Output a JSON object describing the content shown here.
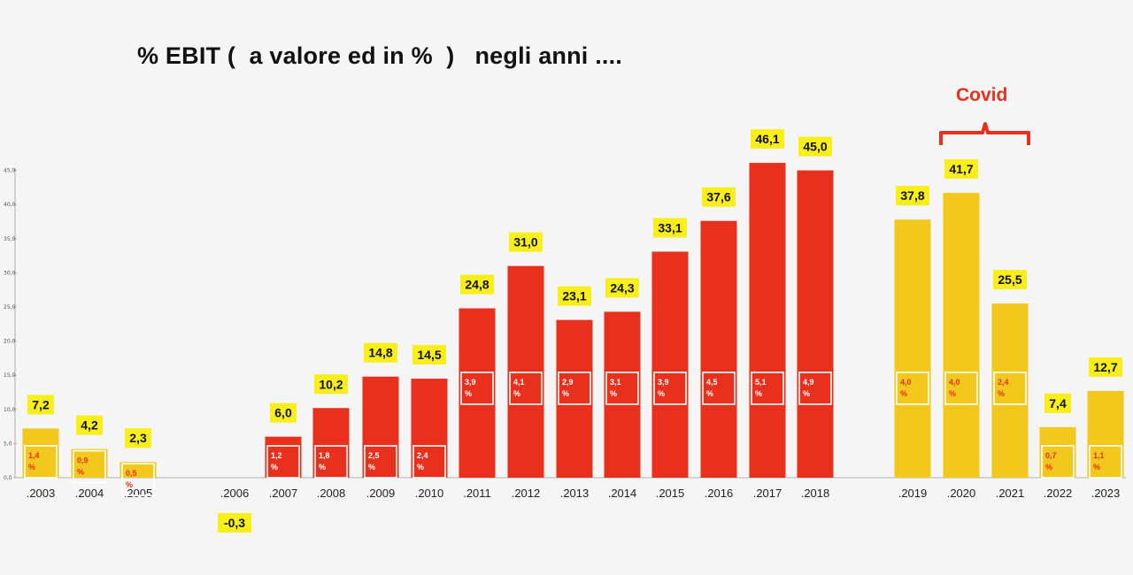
{
  "chart_data": {
    "type": "bar",
    "title": "% EBIT (  a valore ed in %  )   negli anni ....",
    "annotation": "Covid",
    "categories": [
      ".2003",
      ".2004",
      ".2005",
      ".2006",
      ".2007",
      ".2008",
      ".2009",
      ".2010",
      ".2011",
      ".2012",
      ".2013",
      ".2014",
      ".2015",
      ".2016",
      ".2017",
      ".2018",
      ".2019",
      ".2020",
      ".2021",
      ".2022",
      ".2023"
    ],
    "values": [
      7.2,
      4.2,
      2.3,
      -0.3,
      6.0,
      10.2,
      14.8,
      14.5,
      24.8,
      31.0,
      23.1,
      24.3,
      33.1,
      37.6,
      46.1,
      45.0,
      37.8,
      41.7,
      25.5,
      7.4,
      12.7
    ],
    "value_labels": [
      "7,2",
      "4,2",
      "2,3",
      "-0,3",
      "6,0",
      "10,2",
      "14,8",
      "14,5",
      "24,8",
      "31,0",
      "23,1",
      "24,3",
      "33,1",
      "37,6",
      "46,1",
      "45,0",
      "37,8",
      "41,7",
      "25,5",
      "7,4",
      "12,7"
    ],
    "percent_labels": [
      "1,4 %",
      "0,9 %",
      "0,5 %",
      "",
      "1,2 %",
      "1,8 %",
      "2,5 %",
      "2,4 %",
      "3,9 %",
      "4,1 %",
      "2,9 %",
      "3,1 %",
      "3,9 %",
      "4,5 %",
      "5,1 %",
      "4,9 %",
      "4,0 %",
      "4,0 %",
      "2,4 %",
      "0,7 %",
      "1,1 %"
    ],
    "bar_colors": [
      "#f2c81c",
      "#f2c81c",
      "#f2c81c",
      "#f2c81c",
      "#e8301c",
      "#e8301c",
      "#e8301c",
      "#e8301c",
      "#e8301c",
      "#e8301c",
      "#e8301c",
      "#e8301c",
      "#e8301c",
      "#e8301c",
      "#e8301c",
      "#e8301c",
      "#f2c81c",
      "#f2c81c",
      "#f2c81c",
      "#f2c81c",
      "#f2c81c"
    ],
    "yticks": [
      "0,0",
      "5,0",
      "10,0",
      "15,0",
      "20,0",
      "25,0",
      "30,0",
      "35,0",
      "40,0",
      "45,0"
    ],
    "ylim": [
      0,
      48
    ],
    "label_bg_color": "#f7ee1a",
    "covid_color": "#e8301c",
    "xlabel": "",
    "ylabel": "",
    "grid": false
  }
}
